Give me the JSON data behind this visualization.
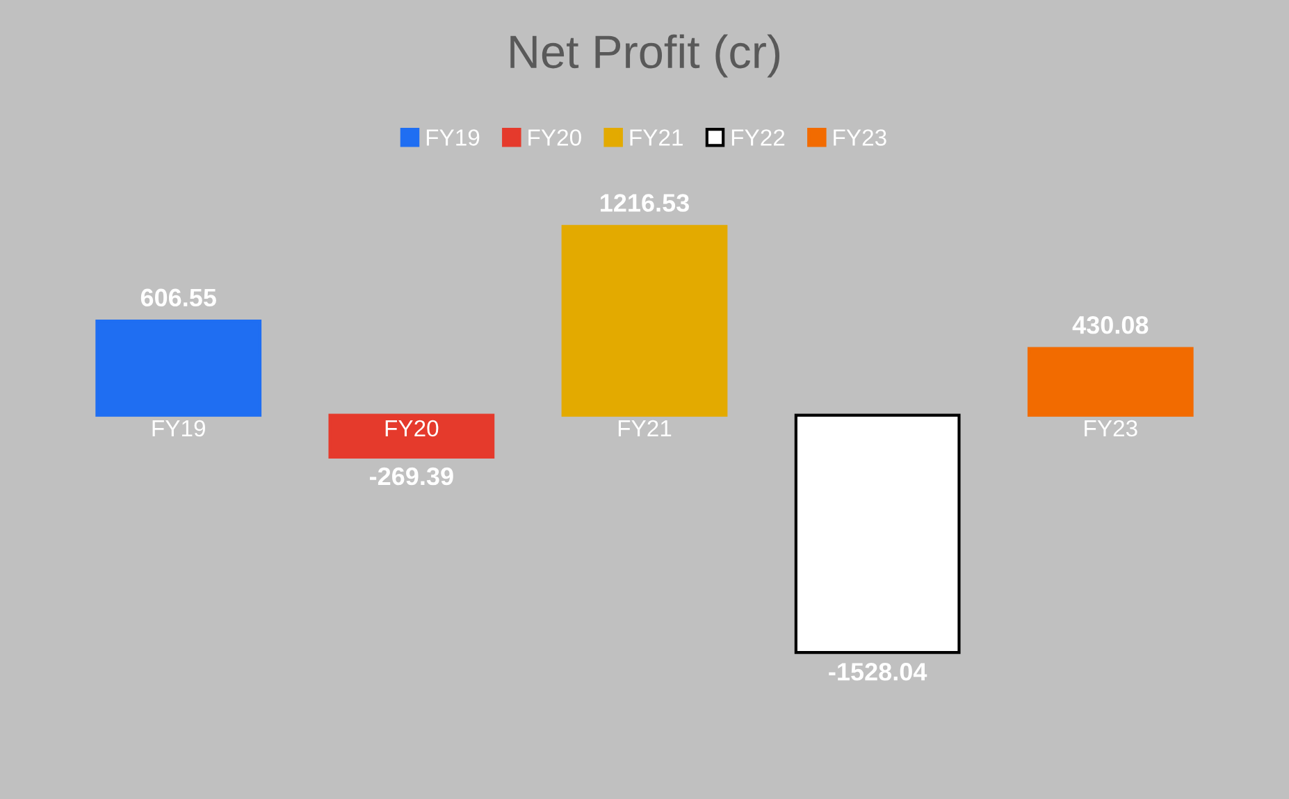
{
  "chart_data": {
    "type": "bar",
    "title": "Net Profit (cr)",
    "categories": [
      "FY19",
      "FY20",
      "FY21",
      null,
      "FY23"
    ],
    "series": [
      {
        "name": "FY19",
        "color": "#1f6ef2",
        "values": [
          606.55,
          null,
          null,
          null,
          null
        ]
      },
      {
        "name": "FY20",
        "color": "#e53a2c",
        "values": [
          null,
          -269.39,
          null,
          null,
          null
        ]
      },
      {
        "name": "FY21",
        "color": "#e3aa00",
        "values": [
          null,
          null,
          1216.53,
          null,
          null
        ]
      },
      {
        "name": "FY22",
        "color": "#ffffff",
        "values": [
          null,
          null,
          null,
          -1528.04,
          null
        ]
      },
      {
        "name": "FY23",
        "color": "#f26b00",
        "values": [
          null,
          null,
          null,
          null,
          430.08
        ]
      }
    ],
    "data_labels": true,
    "legend": "top"
  }
}
